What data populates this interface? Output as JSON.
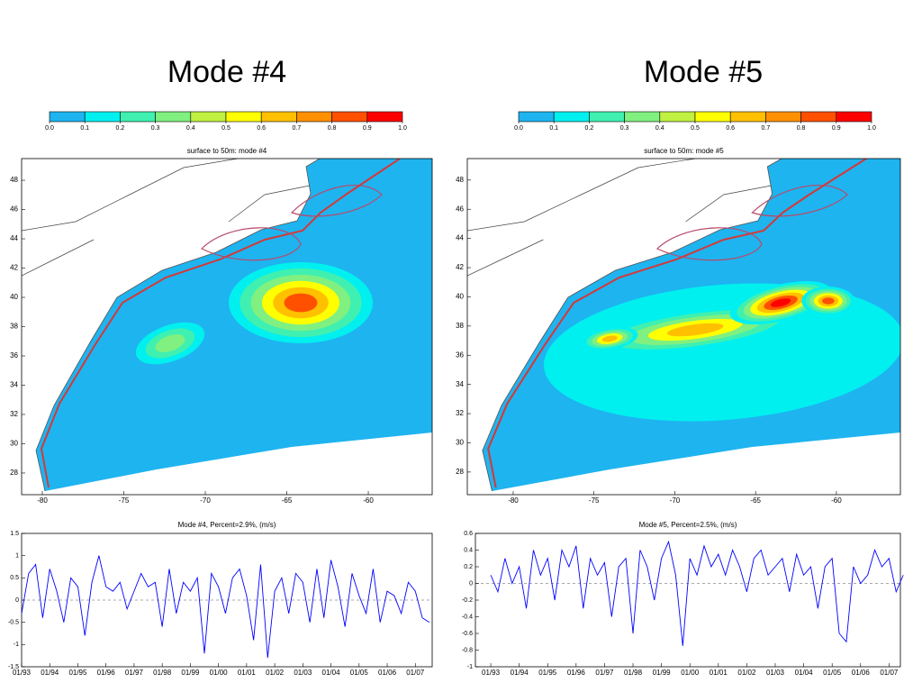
{
  "chart_data": [
    {
      "type": "colorbar",
      "title": "Mode #4",
      "colors": [
        "#1eb4f0",
        "#00f0f0",
        "#40f0b0",
        "#80f080",
        "#c0f040",
        "#ffff00",
        "#ffc000",
        "#ff9000",
        "#ff5000",
        "#ff0000"
      ],
      "xlim": [
        0,
        1
      ],
      "ticks": [
        {
          "value": 0,
          "label": "0.0"
        },
        0.1,
        0.2,
        0.3,
        0.4,
        0.5,
        0.6,
        0.7,
        0.8,
        0.9,
        {
          "value": 1,
          "label": "1.0"
        }
      ]
    },
    {
      "type": "map",
      "title": "surface to 50m: mode #4",
      "xlim": [
        -81.27,
        -56.08
      ],
      "ylim": [
        26.52,
        49.48
      ],
      "xticks": [
        -80,
        -75,
        -70,
        -65,
        -60
      ],
      "yticks": [
        28,
        30,
        32,
        34,
        36,
        38,
        40,
        42,
        44,
        46,
        48
      ]
    },
    {
      "type": "line",
      "title": "Mode #4, Percent=2.9%, (m/s)",
      "color": "#0000ff",
      "zero_line": true,
      "xlim": [
        1993,
        2007.6
      ],
      "ylim": [
        -1.5,
        1.5
      ],
      "yticks": [
        -1.5,
        -1,
        -0.5,
        0,
        0.5,
        1,
        1.5
      ],
      "xticks": [
        {
          "value": 1993,
          "label": "01/93"
        },
        {
          "value": 1994,
          "label": "01/94"
        },
        {
          "value": 1995,
          "label": "01/95"
        },
        {
          "value": 1996,
          "label": "01/96"
        },
        {
          "value": 1997,
          "label": "01/97"
        },
        {
          "value": 1998,
          "label": "01/98"
        },
        {
          "value": 1999,
          "label": "01/99"
        },
        {
          "value": 2000,
          "label": "01/00"
        },
        {
          "value": 2001,
          "label": "01/01"
        },
        {
          "value": 2002,
          "label": "01/02"
        },
        {
          "value": 2003,
          "label": "01/03"
        },
        {
          "value": 2004,
          "label": "01/04"
        },
        {
          "value": 2005,
          "label": "01/05"
        },
        {
          "value": 2006,
          "label": "01/06"
        },
        {
          "value": 2007,
          "label": "01/07"
        }
      ],
      "x": [
        1993,
        1993.25,
        1993.5,
        1993.75,
        1994,
        1994.25,
        1994.5,
        1994.75,
        1995,
        1995.25,
        1995.5,
        1995.75,
        1996,
        1996.25,
        1996.5,
        1996.75,
        1997,
        1997.25,
        1997.5,
        1997.75,
        1998,
        1998.25,
        1998.5,
        1998.75,
        1999,
        1999.25,
        1999.5,
        1999.75,
        2000,
        2000.25,
        2000.5,
        2000.75,
        2001,
        2001.25,
        2001.5,
        2001.75,
        2002,
        2002.25,
        2002.5,
        2002.75,
        2003,
        2003.25,
        2003.5,
        2003.75,
        2004,
        2004.25,
        2004.5,
        2004.75,
        2005,
        2005.25,
        2005.5,
        2005.75,
        2006,
        2006.25,
        2006.5,
        2006.75,
        2007,
        2007.25,
        2007.5
      ],
      "values": [
        -0.3,
        0.6,
        0.8,
        -0.4,
        0.7,
        0.2,
        -0.5,
        0.5,
        0.3,
        -0.8,
        0.4,
        1.0,
        0.3,
        0.2,
        0.4,
        -0.2,
        0.2,
        0.6,
        0.3,
        0.4,
        -0.6,
        0.7,
        -0.3,
        0.4,
        0.2,
        0.5,
        -1.2,
        0.6,
        0.3,
        -0.3,
        0.5,
        0.7,
        0.1,
        -0.9,
        0.8,
        -1.3,
        0.2,
        0.5,
        -0.3,
        0.6,
        0.4,
        -0.5,
        0.7,
        -0.4,
        0.9,
        0.3,
        -0.6,
        0.6,
        0.1,
        -0.3,
        0.7,
        -0.5,
        0.2,
        0.1,
        -0.3,
        0.4,
        0.2,
        -0.4,
        -0.5
      ]
    },
    {
      "type": "colorbar",
      "title": "Mode #5",
      "colors": [
        "#1eb4f0",
        "#00f0f0",
        "#40f0b0",
        "#80f080",
        "#c0f040",
        "#ffff00",
        "#ffc000",
        "#ff9000",
        "#ff5000",
        "#ff0000"
      ],
      "xlim": [
        0,
        1
      ],
      "ticks": [
        {
          "value": 0,
          "label": "0.0"
        },
        0.1,
        0.2,
        0.3,
        0.4,
        0.5,
        0.6,
        0.7,
        0.8,
        0.9,
        {
          "value": 1,
          "label": "1.0"
        }
      ]
    },
    {
      "type": "map",
      "title": "surface to 50m: mode #5",
      "xlim": [
        -82.84,
        -56.04
      ],
      "ylim": [
        26.45,
        49.47
      ],
      "xticks": [
        -80,
        -75,
        -70,
        -65,
        -60
      ],
      "yticks": [
        28,
        30,
        32,
        34,
        36,
        38,
        40,
        42,
        44,
        46,
        48
      ]
    },
    {
      "type": "line",
      "title": "Mode #5, Percent=2.5%, (m/s)",
      "color": "#0000ff",
      "zero_line": true,
      "xlim": [
        1992.46,
        2007.4
      ],
      "ylim": [
        -1,
        0.6
      ],
      "yticks": [
        -1,
        -0.8,
        -0.6,
        -0.4,
        -0.2,
        0,
        0.2,
        0.4,
        0.6
      ],
      "xticks": [
        {
          "value": 1993,
          "label": "01/93"
        },
        {
          "value": 1994,
          "label": "01/94"
        },
        {
          "value": 1995,
          "label": "01/95"
        },
        {
          "value": 1996,
          "label": "01/96"
        },
        {
          "value": 1997,
          "label": "01/97"
        },
        {
          "value": 1998,
          "label": "01/98"
        },
        {
          "value": 1999,
          "label": "01/99"
        },
        {
          "value": 2000,
          "label": "01/00"
        },
        {
          "value": 2001,
          "label": "01/01"
        },
        {
          "value": 2002,
          "label": "01/02"
        },
        {
          "value": 2003,
          "label": "01/03"
        },
        {
          "value": 2004,
          "label": "01/04"
        },
        {
          "value": 2005,
          "label": "01/05"
        },
        {
          "value": 2006,
          "label": "01/06"
        },
        {
          "value": 2007,
          "label": "01/07"
        }
      ],
      "x": [
        1993,
        1993.25,
        1993.5,
        1993.75,
        1994,
        1994.25,
        1994.5,
        1994.75,
        1995,
        1995.25,
        1995.5,
        1995.75,
        1996,
        1996.25,
        1996.5,
        1996.75,
        1997,
        1997.25,
        1997.5,
        1997.75,
        1998,
        1998.25,
        1998.5,
        1998.75,
        1999,
        1999.25,
        1999.5,
        1999.75,
        2000,
        2000.25,
        2000.5,
        2000.75,
        2001,
        2001.25,
        2001.5,
        2001.75,
        2002,
        2002.25,
        2002.5,
        2002.75,
        2003,
        2003.25,
        2003.5,
        2003.75,
        2004,
        2004.25,
        2004.5,
        2004.75,
        2005,
        2005.25,
        2005.5,
        2005.75,
        2006,
        2006.25,
        2006.5,
        2006.75,
        2007,
        2007.25,
        2007.5
      ],
      "values": [
        0.1,
        -0.1,
        0.3,
        0.0,
        0.2,
        -0.3,
        0.4,
        0.1,
        0.3,
        -0.2,
        0.4,
        0.2,
        0.45,
        -0.3,
        0.3,
        0.1,
        0.25,
        -0.4,
        0.2,
        0.3,
        -0.6,
        0.4,
        0.2,
        -0.2,
        0.3,
        0.5,
        0.1,
        -0.75,
        0.3,
        0.1,
        0.45,
        0.2,
        0.35,
        0.1,
        0.4,
        0.2,
        -0.1,
        0.3,
        0.4,
        0.1,
        0.2,
        0.3,
        -0.1,
        0.35,
        0.1,
        0.2,
        -0.3,
        0.2,
        0.3,
        -0.6,
        -0.7,
        0.2,
        0.0,
        0.1,
        0.4,
        0.2,
        0.3,
        -0.1,
        0.1
      ]
    }
  ]
}
